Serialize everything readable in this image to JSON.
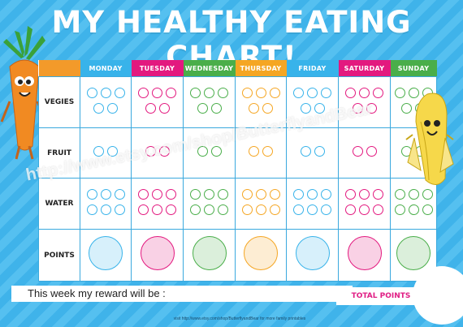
{
  "title": "MY HEALTHY EATING CHART!",
  "days": [
    {
      "label": "MONDAY",
      "color": "#38b3ea"
    },
    {
      "label": "TUESDAY",
      "color": "#e3197f"
    },
    {
      "label": "WEDNESDAY",
      "color": "#4aae4a"
    },
    {
      "label": "THURSDAY",
      "color": "#f5a623"
    },
    {
      "label": "FRIDAY",
      "color": "#38b3ea"
    },
    {
      "label": "SATURDAY",
      "color": "#e3197f"
    },
    {
      "label": "SUNDAY",
      "color": "#4aae4a"
    }
  ],
  "rows": [
    {
      "label": "VEGIES",
      "circles_per_day": 5
    },
    {
      "label": "FRUIT",
      "circles_per_day": 2
    },
    {
      "label": "WATER",
      "circles_per_day": 6
    },
    {
      "label": "POINTS",
      "circles_per_day": 1
    }
  ],
  "reward_text": "This week my reward will be :",
  "total_points_label": "TOTAL POINTS",
  "footer_text": "visit http://www.etsy.com/shop/ButterflyandBear for more family printables",
  "watermark": "http://www.etsy.com/shop/ButterflyandBear",
  "icons": {
    "left": "carrot-character-icon",
    "right": "banana-character-icon"
  }
}
